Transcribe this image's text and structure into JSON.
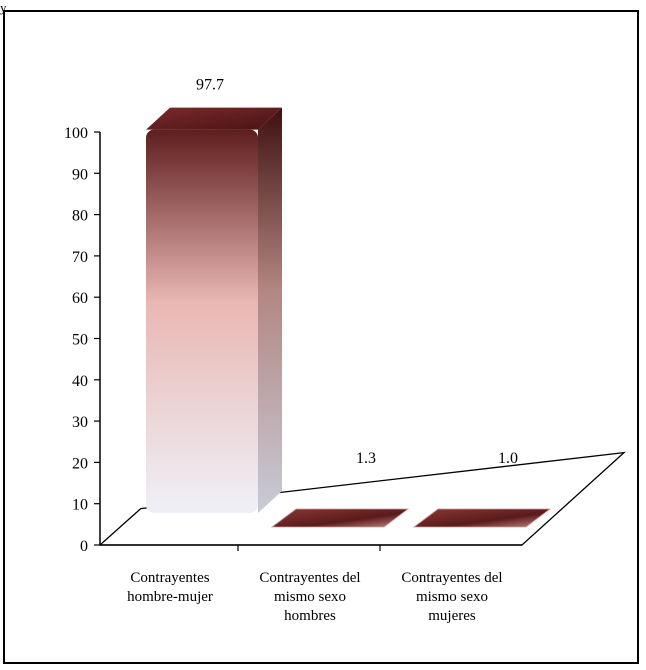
{
  "header_fragment": "y",
  "colors": {
    "bar_top": "#5a1b1b",
    "bar_mid": "#e8b8b4",
    "bar_bottom": "#eef0f6",
    "bar_side": "#7a4444",
    "axis": "#000000"
  },
  "chart_data": {
    "type": "bar",
    "style": "3d",
    "categories": [
      [
        "Contrayentes",
        "hombre-mujer"
      ],
      [
        "Contrayentes del",
        "mismo sexo",
        "hombres"
      ],
      [
        "Contrayentes del",
        "mismo sexo",
        "mujeres"
      ]
    ],
    "values": [
      97.7,
      1.3,
      1.0
    ],
    "value_labels": [
      "97.7",
      "1.3",
      "1.0"
    ],
    "ylim": [
      0,
      100
    ],
    "yticks": [
      "0",
      "10",
      "20",
      "30",
      "40",
      "50",
      "60",
      "70",
      "80",
      "90",
      "100"
    ],
    "grid": false,
    "legend": "none"
  }
}
